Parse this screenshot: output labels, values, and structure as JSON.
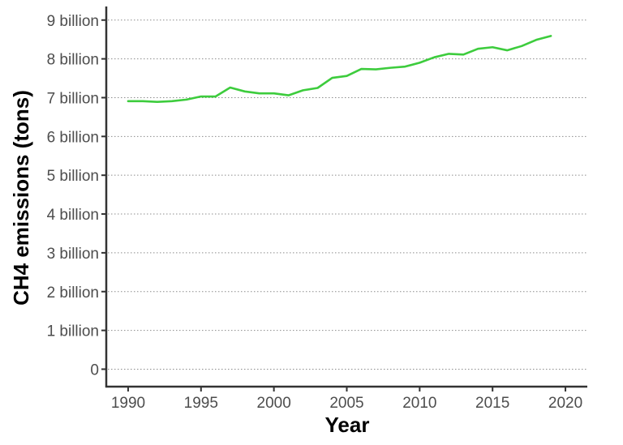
{
  "chart_data": {
    "type": "line",
    "title": "",
    "xlabel": "Year",
    "ylabel": "CH4 emissions (tons)",
    "xlim": [
      1988.5,
      2021.5
    ],
    "ylim": [
      -0.45,
      9.35
    ],
    "x_ticks": [
      1990,
      1995,
      2000,
      2005,
      2010,
      2015,
      2020
    ],
    "x_tick_labels": [
      "1990",
      "1995",
      "2000",
      "2005",
      "2010",
      "2015",
      "2020"
    ],
    "y_ticks": [
      0,
      1,
      2,
      3,
      4,
      5,
      6,
      7,
      8,
      9
    ],
    "y_tick_labels": [
      "0",
      "1 billion",
      "2 billion",
      "3 billion",
      "4 billion",
      "5 billion",
      "6 billion",
      "7 billion",
      "8 billion",
      "9 billion"
    ],
    "y_unit": "billion tons",
    "grid": "horizontal dotted",
    "legend": "none",
    "series": [
      {
        "color": "#3dcc3d",
        "x": [
          1990,
          1991,
          1992,
          1993,
          1994,
          1995,
          1996,
          1997,
          1998,
          1999,
          2000,
          2001,
          2002,
          2003,
          2004,
          2005,
          2006,
          2007,
          2008,
          2009,
          2010,
          2011,
          2012,
          2013,
          2014,
          2015,
          2016,
          2017,
          2018,
          2019
        ],
        "y": [
          6.91,
          6.91,
          6.89,
          6.91,
          6.95,
          7.03,
          7.03,
          7.26,
          7.16,
          7.11,
          7.11,
          7.06,
          7.19,
          7.25,
          7.51,
          7.56,
          7.74,
          7.73,
          7.77,
          7.8,
          7.9,
          8.04,
          8.13,
          8.11,
          8.26,
          8.3,
          8.22,
          8.33,
          8.49,
          8.59
        ]
      }
    ]
  }
}
